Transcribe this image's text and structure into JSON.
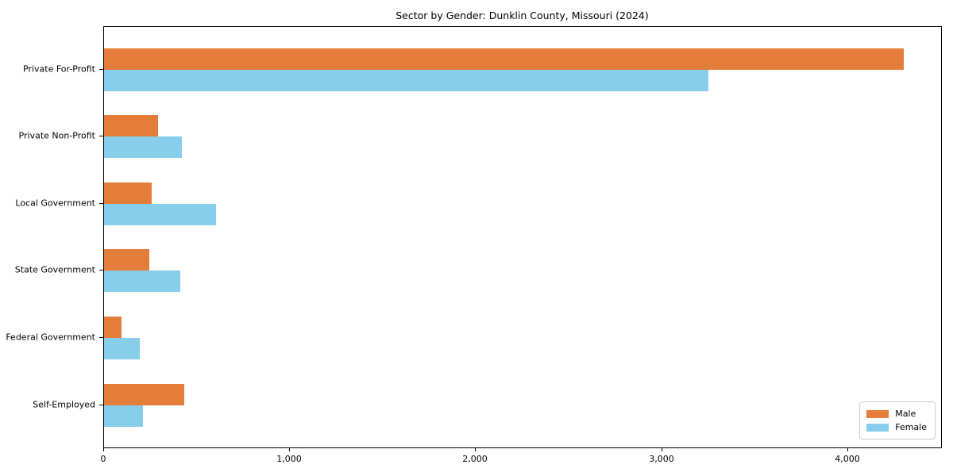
{
  "title": "Sector by Gender: Dunklin County, Missouri (2024)",
  "chart_data": {
    "type": "bar",
    "orientation": "horizontal",
    "title": "Sector by Gender: Dunklin County, Missouri (2024)",
    "categories": [
      "Private For-Profit",
      "Private Non-Profit",
      "Local Government",
      "State Government",
      "Federal Government",
      "Self-Employed"
    ],
    "series": [
      {
        "name": "Male",
        "color": "#e57d3a",
        "values": [
          4300,
          290,
          255,
          245,
          95,
          430
        ]
      },
      {
        "name": "Female",
        "color": "#87ceeb",
        "values": [
          3250,
          420,
          600,
          410,
          190,
          210
        ]
      }
    ],
    "xlabel": "",
    "ylabel": "",
    "xlim": [
      0,
      4500
    ],
    "xticks": [
      0,
      1000,
      2000,
      3000,
      4000
    ],
    "xtick_labels": [
      "0",
      "1,000",
      "2,000",
      "3,000",
      "4,000"
    ],
    "grid": false,
    "legend": {
      "position": "lower right",
      "entries": [
        "Male",
        "Female"
      ]
    }
  }
}
